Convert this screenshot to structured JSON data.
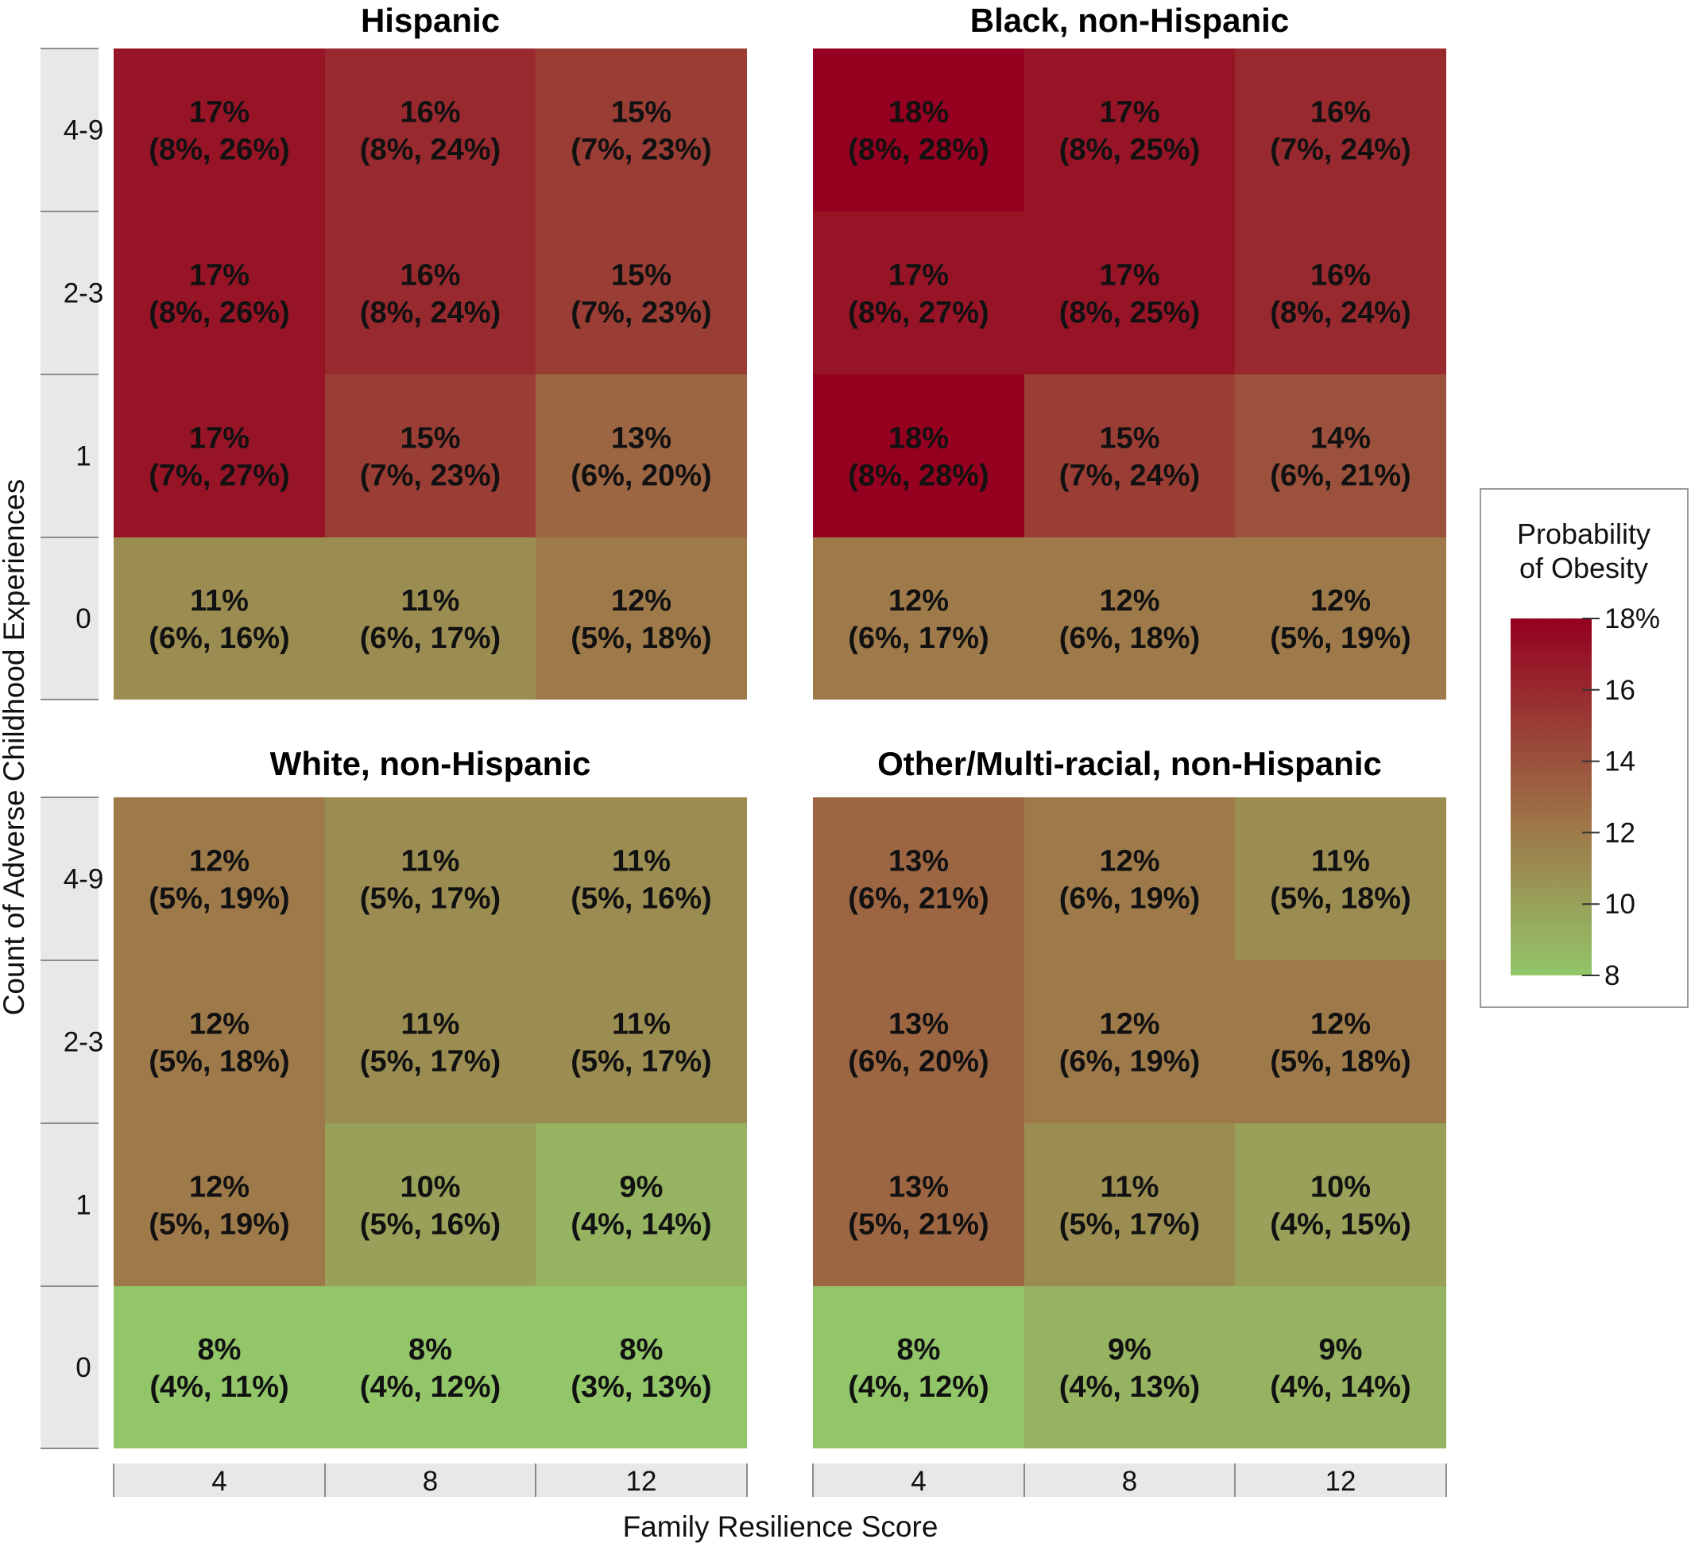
{
  "chart_data": {
    "type": "heatmap",
    "xlabel": "Family Resilience Score",
    "ylabel": "Count of Adverse Childhood Experiences",
    "x_categories": [
      "4",
      "8",
      "12"
    ],
    "y_categories": [
      "4-9",
      "2-3",
      "1",
      "0"
    ],
    "legend": {
      "title_lines": [
        "Probability",
        "of Obesity"
      ],
      "ticks": [
        "18%",
        "16",
        "14",
        "12",
        "10",
        "8"
      ],
      "tick_values": [
        18,
        16,
        14,
        12,
        10,
        8
      ],
      "range": [
        8,
        18
      ],
      "color_low": "#92c669",
      "color_mid": "#9e7a4a",
      "color_high": "#950020",
      "placement": "right"
    },
    "panels": [
      {
        "title": "Hispanic",
        "cells": [
          [
            {
              "v": 17,
              "label": "17%",
              "ci": "(8%, 26%)"
            },
            {
              "v": 16,
              "label": "16%",
              "ci": "(8%, 24%)"
            },
            {
              "v": 15,
              "label": "15%",
              "ci": "(7%, 23%)"
            }
          ],
          [
            {
              "v": 17,
              "label": "17%",
              "ci": "(8%, 26%)"
            },
            {
              "v": 16,
              "label": "16%",
              "ci": "(8%, 24%)"
            },
            {
              "v": 15,
              "label": "15%",
              "ci": "(7%, 23%)"
            }
          ],
          [
            {
              "v": 17,
              "label": "17%",
              "ci": "(7%, 27%)"
            },
            {
              "v": 15,
              "label": "15%",
              "ci": "(7%, 23%)"
            },
            {
              "v": 13,
              "label": "13%",
              "ci": "(6%, 20%)"
            }
          ],
          [
            {
              "v": 11,
              "label": "11%",
              "ci": "(6%, 16%)"
            },
            {
              "v": 11,
              "label": "11%",
              "ci": "(6%, 17%)"
            },
            {
              "v": 12,
              "label": "12%",
              "ci": "(5%, 18%)"
            }
          ]
        ]
      },
      {
        "title": "Black, non-Hispanic",
        "cells": [
          [
            {
              "v": 18,
              "label": "18%",
              "ci": "(8%, 28%)"
            },
            {
              "v": 17,
              "label": "17%",
              "ci": "(8%, 25%)"
            },
            {
              "v": 16,
              "label": "16%",
              "ci": "(7%, 24%)"
            }
          ],
          [
            {
              "v": 17,
              "label": "17%",
              "ci": "(8%, 27%)"
            },
            {
              "v": 17,
              "label": "17%",
              "ci": "(8%, 25%)"
            },
            {
              "v": 16,
              "label": "16%",
              "ci": "(8%, 24%)"
            }
          ],
          [
            {
              "v": 18,
              "label": "18%",
              "ci": "(8%, 28%)"
            },
            {
              "v": 15,
              "label": "15%",
              "ci": "(7%, 24%)"
            },
            {
              "v": 14,
              "label": "14%",
              "ci": "(6%, 21%)"
            }
          ],
          [
            {
              "v": 12,
              "label": "12%",
              "ci": "(6%, 17%)"
            },
            {
              "v": 12,
              "label": "12%",
              "ci": "(6%, 18%)"
            },
            {
              "v": 12,
              "label": "12%",
              "ci": "(5%, 19%)"
            }
          ]
        ]
      },
      {
        "title": "White, non-Hispanic",
        "cells": [
          [
            {
              "v": 12,
              "label": "12%",
              "ci": "(5%, 19%)"
            },
            {
              "v": 11,
              "label": "11%",
              "ci": "(5%, 17%)"
            },
            {
              "v": 11,
              "label": "11%",
              "ci": "(5%, 16%)"
            }
          ],
          [
            {
              "v": 12,
              "label": "12%",
              "ci": "(5%, 18%)"
            },
            {
              "v": 11,
              "label": "11%",
              "ci": "(5%, 17%)"
            },
            {
              "v": 11,
              "label": "11%",
              "ci": "(5%, 17%)"
            }
          ],
          [
            {
              "v": 12,
              "label": "12%",
              "ci": "(5%, 19%)"
            },
            {
              "v": 10,
              "label": "10%",
              "ci": "(5%, 16%)"
            },
            {
              "v": 9,
              "label": "9%",
              "ci": "(4%, 14%)"
            }
          ],
          [
            {
              "v": 8,
              "label": "8%",
              "ci": "(4%, 11%)"
            },
            {
              "v": 8,
              "label": "8%",
              "ci": "(4%, 12%)"
            },
            {
              "v": 8,
              "label": "8%",
              "ci": "(3%, 13%)"
            }
          ]
        ]
      },
      {
        "title": "Other/Multi-racial, non-Hispanic",
        "cells": [
          [
            {
              "v": 13,
              "label": "13%",
              "ci": "(6%, 21%)"
            },
            {
              "v": 12,
              "label": "12%",
              "ci": "(6%, 19%)"
            },
            {
              "v": 11,
              "label": "11%",
              "ci": "(5%, 18%)"
            }
          ],
          [
            {
              "v": 13,
              "label": "13%",
              "ci": "(6%, 20%)"
            },
            {
              "v": 12,
              "label": "12%",
              "ci": "(6%, 19%)"
            },
            {
              "v": 12,
              "label": "12%",
              "ci": "(5%, 18%)"
            }
          ],
          [
            {
              "v": 13,
              "label": "13%",
              "ci": "(5%, 21%)"
            },
            {
              "v": 11,
              "label": "11%",
              "ci": "(5%, 17%)"
            },
            {
              "v": 10,
              "label": "10%",
              "ci": "(4%, 15%)"
            }
          ],
          [
            {
              "v": 8,
              "label": "8%",
              "ci": "(4%, 12%)"
            },
            {
              "v": 9,
              "label": "9%",
              "ci": "(4%, 13%)"
            },
            {
              "v": 9,
              "label": "9%",
              "ci": "(4%, 14%)"
            }
          ]
        ]
      }
    ]
  }
}
